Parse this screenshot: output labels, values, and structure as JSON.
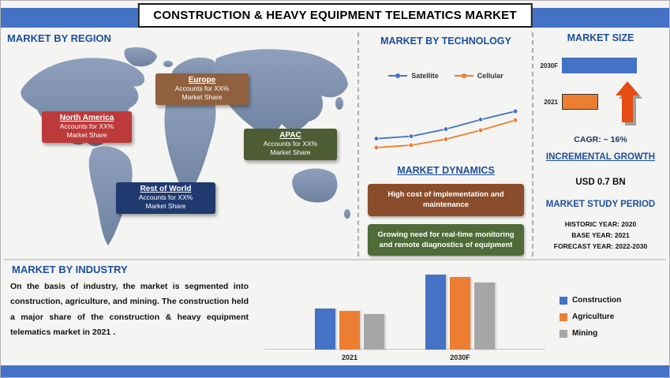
{
  "title": "CONSTRUCTION & HEAVY EQUIPMENT TELEMATICS MARKET",
  "colors": {
    "strip_blue": "#4472c4",
    "heading_blue": "#1d4f9e",
    "bar_blue": "#4472c4",
    "bar_orange": "#ed7d31",
    "bar_gray": "#a6a6a6",
    "map_fill": "#8093b0",
    "arrow_orange": "#e64b12"
  },
  "region": {
    "heading": "MARKET BY REGION",
    "callouts": [
      {
        "id": "north-america",
        "title": "North America",
        "line1": "Accounts for XX%",
        "line2": "Market Share",
        "color": "#bd3a3a"
      },
      {
        "id": "europe",
        "title": "Europe",
        "line1": "Accounts for XX%",
        "line2": "Market Share",
        "color": "#91613f"
      },
      {
        "id": "apac",
        "title": "APAC",
        "line1": "Accounts for XX%",
        "line2": "Market Share",
        "color": "#4e5c33"
      },
      {
        "id": "rest-of-world",
        "title": "Rest of World",
        "line1": "Accounts for XX%",
        "line2": "Market Share",
        "color": "#203a70"
      }
    ]
  },
  "technology": {
    "heading": "MARKET BY TECHNOLOGY"
  },
  "dynamics": {
    "heading": "MARKET DYNAMICS",
    "items": [
      {
        "text": "High cost of implementation and maintenance",
        "color": "#8a4d2b"
      },
      {
        "text": "Growing need for real-time monitoring and remote diagnostics of equipment",
        "color": "#4f6b38"
      }
    ]
  },
  "market_size": {
    "heading": "MARKET SIZE",
    "cagr_label": "CAGR: ~ 16%",
    "incremental_heading": "INCREMENTAL GROWTH",
    "incremental_value": "USD 0.7 BN",
    "study_period_heading": "MARKET STUDY PERIOD",
    "study_period_lines": [
      "HISTORIC YEAR: 2020",
      "BASE YEAR: 2021",
      "FORECAST YEAR: 2022-2030"
    ]
  },
  "industry": {
    "heading": "MARKET BY INDUSTRY",
    "paragraph": "On the basis of industry, the market is segmented into construction, agriculture, and mining. The construction held a major share of the construction & heavy equipment telematics market in 2021 ."
  },
  "chart_data": [
    {
      "id": "technology_trend",
      "type": "line",
      "title": "MARKET BY TECHNOLOGY",
      "x": [
        1,
        2,
        3,
        4,
        5
      ],
      "series": [
        {
          "name": "Satellite",
          "color": "#4472c4",
          "values": [
            13,
            13.4,
            14.6,
            16.2,
            17.6
          ]
        },
        {
          "name": "Cellular",
          "color": "#ed7d31",
          "values": [
            11.5,
            11.9,
            12.9,
            14.4,
            16.1
          ]
        }
      ],
      "legend_position": "top",
      "axes_visible": false,
      "note": "values are relative units; no axis labels shown in source"
    },
    {
      "id": "market_size",
      "type": "bar",
      "orientation": "horizontal",
      "title": "MARKET SIZE",
      "categories": [
        "2030F",
        "2021"
      ],
      "values": [
        95,
        46
      ],
      "units": "relative length",
      "colors": [
        "#4472c4",
        "#ed7d31"
      ],
      "cagr_pct": 16,
      "incremental_growth": "USD 0.7 BN"
    },
    {
      "id": "industry",
      "type": "bar",
      "title": "MARKET BY INDUSTRY",
      "categories": [
        "2021",
        "2030F"
      ],
      "series": [
        {
          "name": "Construction",
          "color": "#4472c4",
          "values": [
            55,
            100
          ]
        },
        {
          "name": "Agriculture",
          "color": "#ed7d31",
          "values": [
            52,
            97
          ]
        },
        {
          "name": "Mining",
          "color": "#a6a6a6",
          "values": [
            48,
            90
          ]
        }
      ],
      "ylim": [
        0,
        110
      ],
      "units": "relative",
      "legend_position": "right",
      "grid": false
    }
  ]
}
